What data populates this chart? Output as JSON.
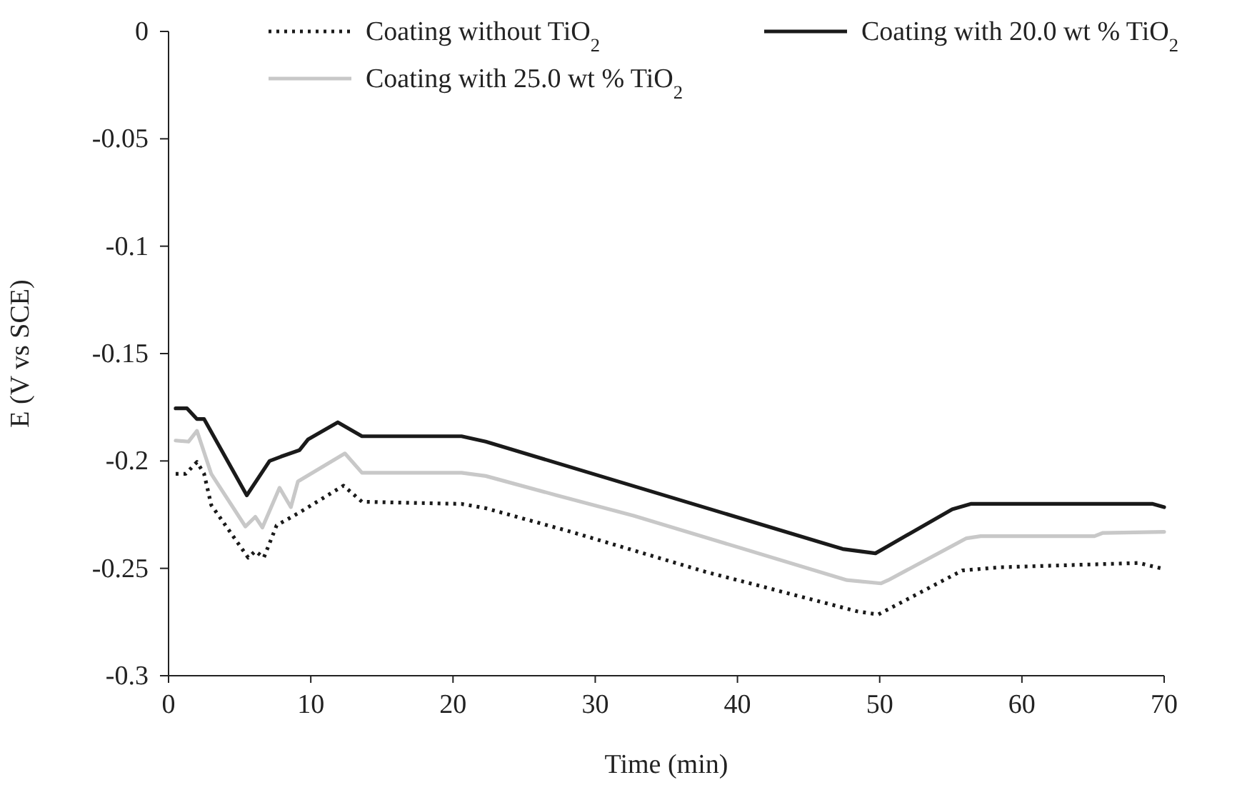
{
  "chart_data": {
    "type": "line",
    "xlabel": "Time (min)",
    "ylabel": "E (V vs SCE)",
    "xlim": [
      0,
      70
    ],
    "xticks": [
      0,
      10,
      20,
      30,
      40,
      50,
      60,
      70
    ],
    "ylim": [
      -0.3,
      0
    ],
    "yticks": [
      -0.3,
      -0.25,
      -0.2,
      -0.15,
      -0.1,
      -0.05,
      0
    ],
    "grid": false,
    "legend": "top right",
    "series": [
      {
        "name": "Coating without TiO$_{2}$",
        "color": "#1a1a1a",
        "line_style": "dotted",
        "x": [
          0.5,
          1.2,
          2.0,
          2.5,
          3.0,
          5.6,
          6.1,
          6.7,
          7.6,
          9.2,
          12.3,
          13.6,
          20.6,
          22.3,
          28.3,
          37.7,
          48.4,
          49.9,
          55.8,
          58.5,
          68.2,
          69.8
        ],
        "values": [
          -0.206,
          -0.206,
          -0.2005,
          -0.206,
          -0.2205,
          -0.245,
          -0.242,
          -0.245,
          -0.23,
          -0.224,
          -0.2115,
          -0.219,
          -0.22,
          -0.222,
          -0.233,
          -0.2515,
          -0.27,
          -0.2715,
          -0.251,
          -0.2495,
          -0.2475,
          -0.25
        ]
      },
      {
        "name": "Coating with 20.0 wt % TiO$_{2}$",
        "color": "#1a1a1a",
        "line_style": "solid",
        "x": [
          0.5,
          1.3,
          2.0,
          2.5,
          5.5,
          7.1,
          7.9,
          9.2,
          9.8,
          11.9,
          13.6,
          20.6,
          22.3,
          47.4,
          49.7,
          55.1,
          56.4,
          69.2,
          70
        ],
        "values": [
          -0.1755,
          -0.1755,
          -0.1805,
          -0.1805,
          -0.216,
          -0.2,
          -0.198,
          -0.195,
          -0.19,
          -0.182,
          -0.1885,
          -0.1885,
          -0.191,
          -0.241,
          -0.243,
          -0.2225,
          -0.22,
          -0.22,
          -0.2215
        ]
      },
      {
        "name": "Coating with 25.0 wt % TiO$_{2}$",
        "color": "#c8c8c8",
        "line_style": "solid",
        "x": [
          0.5,
          1.4,
          2.0,
          3.0,
          5.4,
          6.1,
          6.6,
          7.8,
          8.6,
          9.1,
          12.4,
          13.6,
          20.6,
          22.3,
          27.3,
          32.7,
          47.7,
          50.1,
          50.6,
          56.1,
          57.1,
          65.1,
          65.7,
          70
        ],
        "values": [
          -0.1905,
          -0.191,
          -0.186,
          -0.206,
          -0.2305,
          -0.226,
          -0.231,
          -0.2125,
          -0.2215,
          -0.2095,
          -0.1965,
          -0.2055,
          -0.2055,
          -0.207,
          -0.216,
          -0.2255,
          -0.2555,
          -0.257,
          -0.2555,
          -0.236,
          -0.235,
          -0.235,
          -0.2335,
          -0.233
        ]
      }
    ]
  }
}
